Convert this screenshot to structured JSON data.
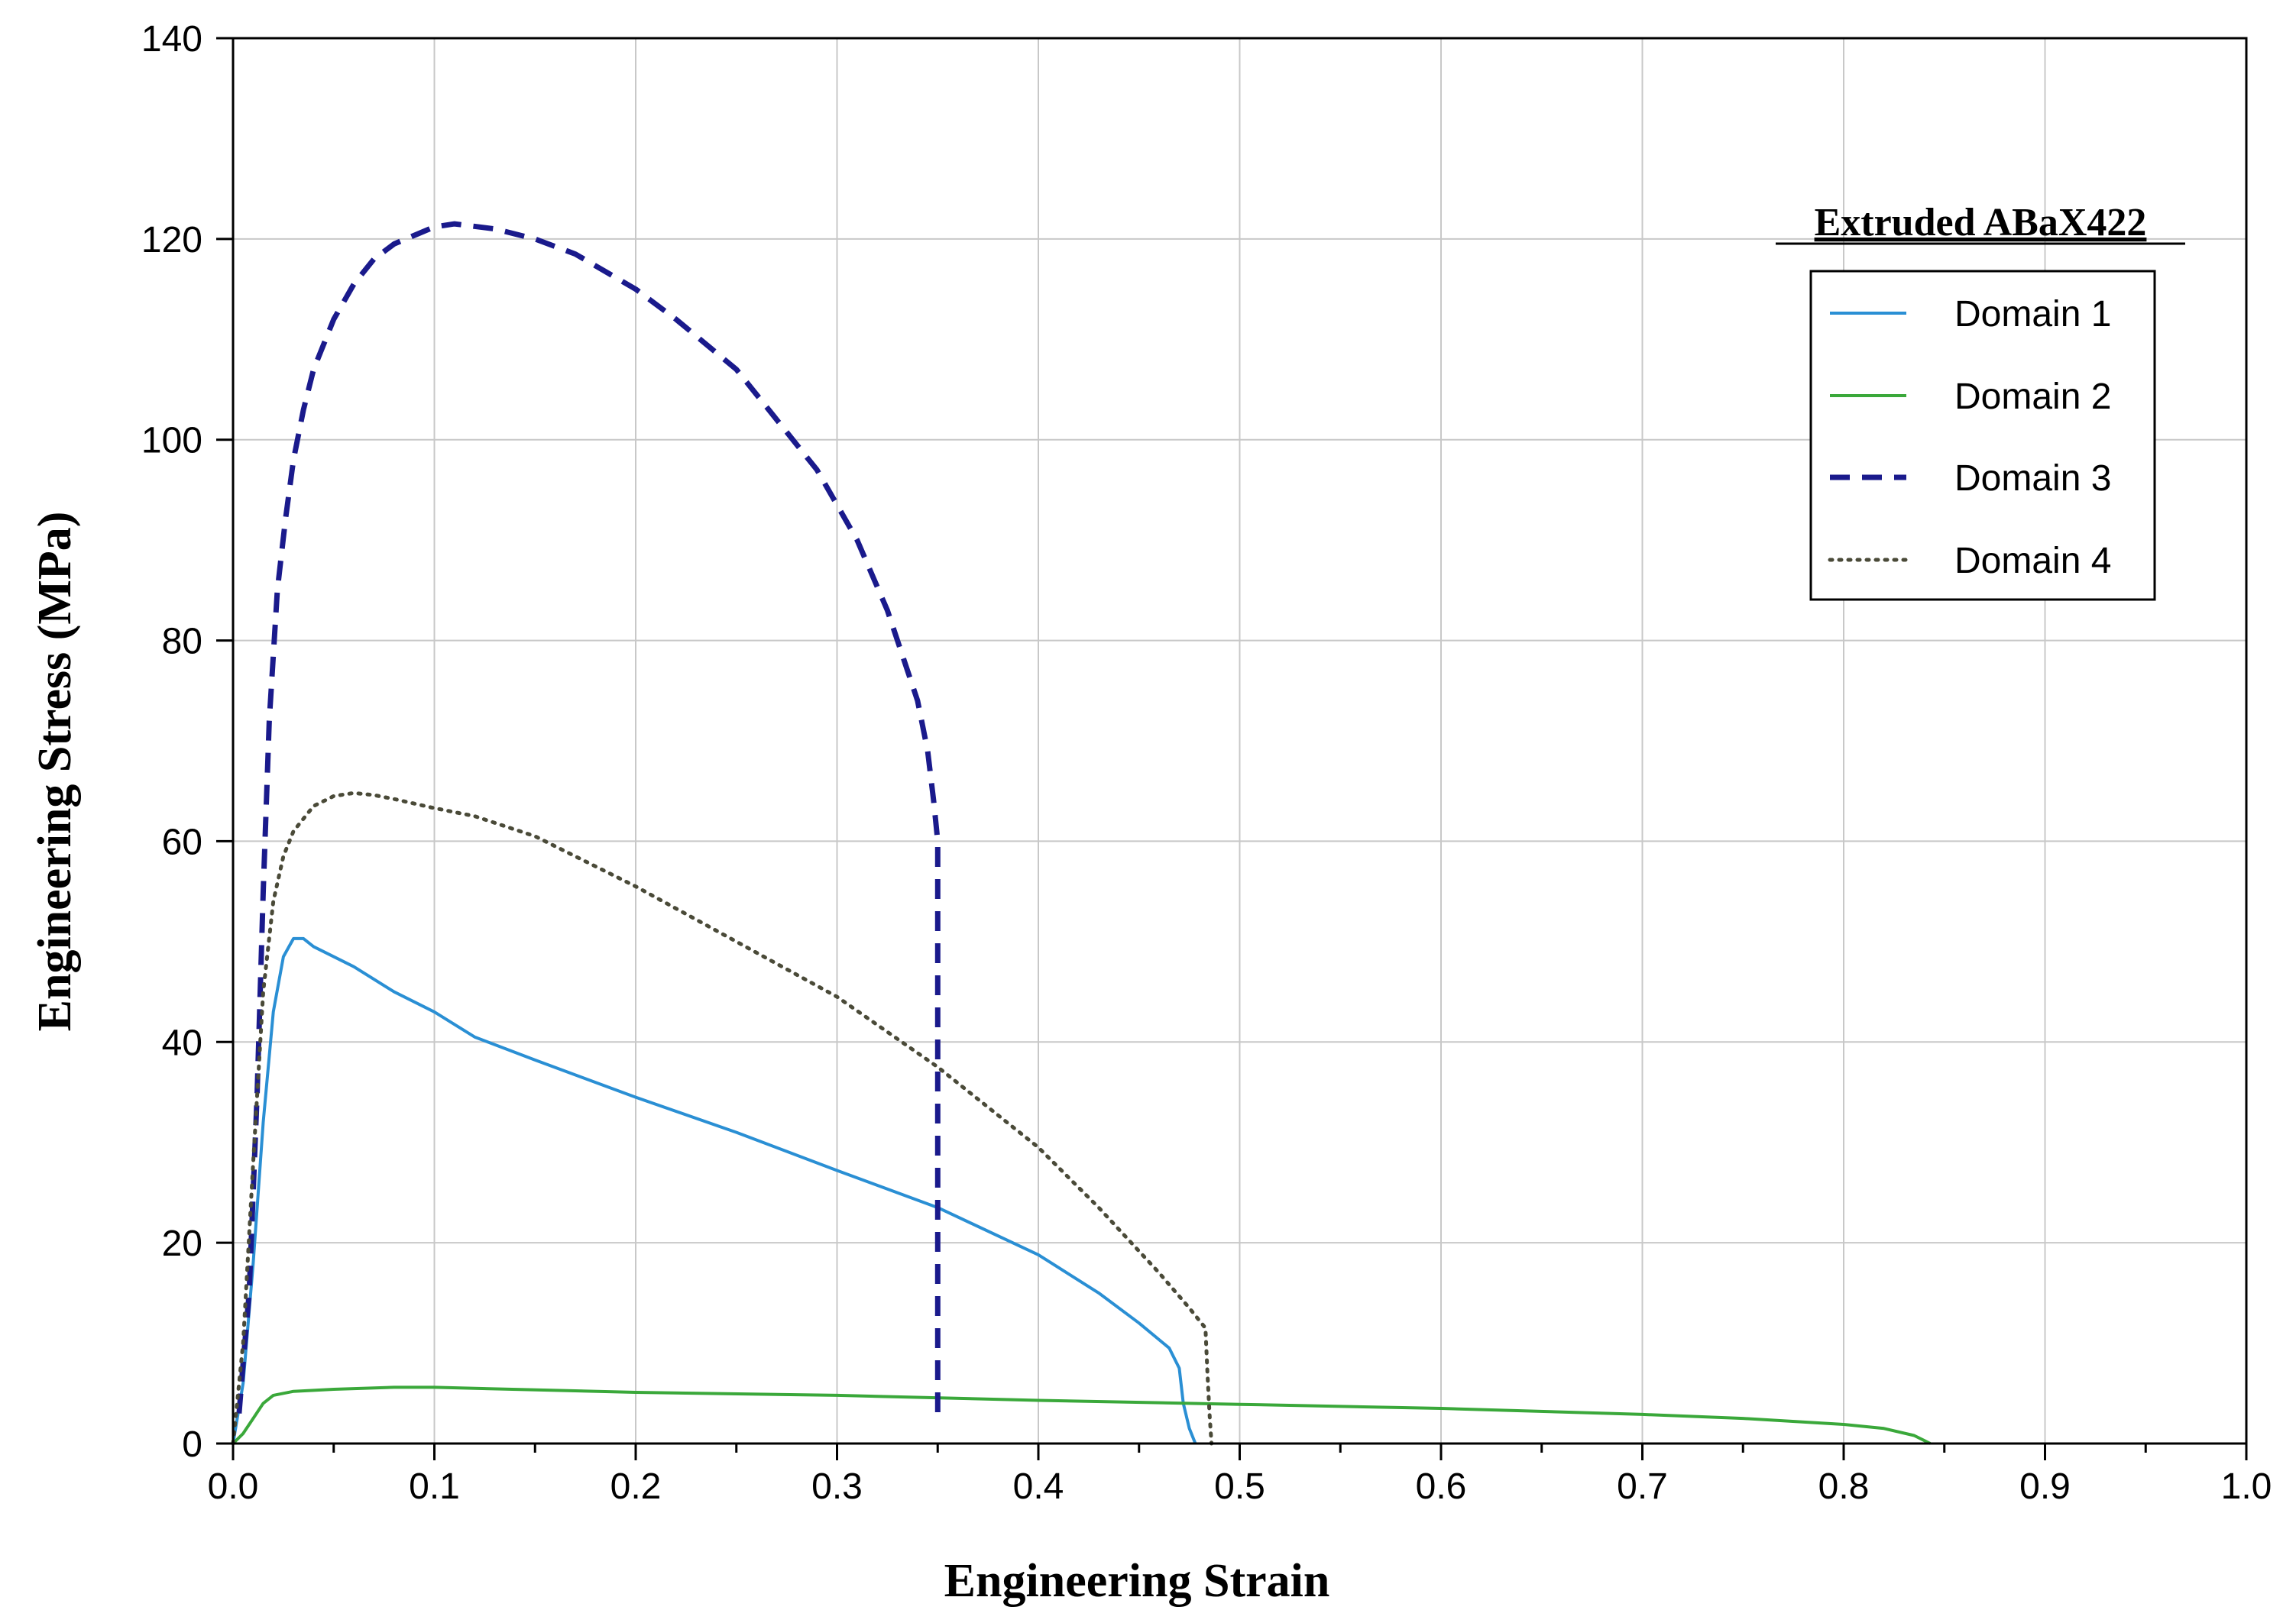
{
  "chart_data": {
    "type": "line",
    "title": "",
    "xlabel": "Engineering Strain",
    "ylabel": "Engineering Stress (MPa)",
    "xlim": [
      0.0,
      1.0
    ],
    "ylim": [
      0,
      140
    ],
    "x_ticks": [
      "0.0",
      "0.1",
      "0.2",
      "0.3",
      "0.4",
      "0.5",
      "0.6",
      "0.7",
      "0.8",
      "0.9",
      "1.0"
    ],
    "y_ticks": [
      "0",
      "20",
      "40",
      "60",
      "80",
      "100",
      "120",
      "140"
    ],
    "grid": true,
    "legend": {
      "title": "Extruded ABaX422",
      "position": "top-right"
    },
    "series": [
      {
        "name": "Domain 1",
        "color": "#2a8fd4",
        "style": "solid",
        "points": [
          [
            0,
            0
          ],
          [
            0.005,
            6
          ],
          [
            0.01,
            18
          ],
          [
            0.015,
            32
          ],
          [
            0.02,
            43
          ],
          [
            0.025,
            48.5
          ],
          [
            0.03,
            50.3
          ],
          [
            0.035,
            50.3
          ],
          [
            0.04,
            49.5
          ],
          [
            0.06,
            47.5
          ],
          [
            0.08,
            45
          ],
          [
            0.1,
            43
          ],
          [
            0.12,
            40.5
          ],
          [
            0.15,
            38.2
          ],
          [
            0.2,
            34.5
          ],
          [
            0.25,
            31
          ],
          [
            0.3,
            27.2
          ],
          [
            0.35,
            23.5
          ],
          [
            0.4,
            18.8
          ],
          [
            0.43,
            15
          ],
          [
            0.45,
            12
          ],
          [
            0.465,
            9.5
          ],
          [
            0.47,
            7.5
          ],
          [
            0.472,
            4
          ],
          [
            0.475,
            1.5
          ],
          [
            0.478,
            0
          ]
        ]
      },
      {
        "name": "Domain 2",
        "color": "#3aa83a",
        "style": "solid",
        "points": [
          [
            0,
            0
          ],
          [
            0.005,
            1
          ],
          [
            0.01,
            2.5
          ],
          [
            0.015,
            4
          ],
          [
            0.02,
            4.8
          ],
          [
            0.03,
            5.2
          ],
          [
            0.05,
            5.4
          ],
          [
            0.08,
            5.6
          ],
          [
            0.1,
            5.6
          ],
          [
            0.2,
            5.1
          ],
          [
            0.3,
            4.8
          ],
          [
            0.4,
            4.3
          ],
          [
            0.5,
            3.9
          ],
          [
            0.6,
            3.5
          ],
          [
            0.7,
            2.9
          ],
          [
            0.75,
            2.5
          ],
          [
            0.8,
            1.9
          ],
          [
            0.82,
            1.5
          ],
          [
            0.835,
            0.8
          ],
          [
            0.84,
            0.3
          ],
          [
            0.843,
            0
          ]
        ]
      },
      {
        "name": "Domain 3",
        "color": "#1a1a8c",
        "style": "dashed",
        "points": [
          [
            0.003,
            3
          ],
          [
            0.005,
            8
          ],
          [
            0.008,
            15
          ],
          [
            0.012,
            35
          ],
          [
            0.015,
            55
          ],
          [
            0.018,
            72
          ],
          [
            0.022,
            85
          ],
          [
            0.026,
            92
          ],
          [
            0.03,
            98
          ],
          [
            0.035,
            103
          ],
          [
            0.04,
            107
          ],
          [
            0.05,
            112
          ],
          [
            0.06,
            115.5
          ],
          [
            0.07,
            118
          ],
          [
            0.08,
            119.5
          ],
          [
            0.1,
            121.2
          ],
          [
            0.11,
            121.5
          ],
          [
            0.13,
            121
          ],
          [
            0.15,
            120
          ],
          [
            0.17,
            118.5
          ],
          [
            0.2,
            115
          ],
          [
            0.22,
            112
          ],
          [
            0.25,
            107
          ],
          [
            0.27,
            102
          ],
          [
            0.29,
            97
          ],
          [
            0.31,
            90
          ],
          [
            0.325,
            83
          ],
          [
            0.34,
            74
          ],
          [
            0.345,
            69
          ],
          [
            0.348,
            64
          ],
          [
            0.35,
            60
          ],
          [
            0.35,
            40
          ],
          [
            0.35,
            20
          ],
          [
            0.35,
            3
          ]
        ]
      },
      {
        "name": "Domain 4",
        "color": "#4a4a38",
        "style": "dotted",
        "points": [
          [
            0,
            0
          ],
          [
            0.005,
            10
          ],
          [
            0.01,
            28
          ],
          [
            0.015,
            45
          ],
          [
            0.02,
            54
          ],
          [
            0.025,
            58.5
          ],
          [
            0.03,
            61
          ],
          [
            0.04,
            63.5
          ],
          [
            0.05,
            64.5
          ],
          [
            0.06,
            64.8
          ],
          [
            0.07,
            64.6
          ],
          [
            0.08,
            64.2
          ],
          [
            0.1,
            63.3
          ],
          [
            0.12,
            62.5
          ],
          [
            0.15,
            60.5
          ],
          [
            0.2,
            55.5
          ],
          [
            0.25,
            50
          ],
          [
            0.3,
            44.5
          ],
          [
            0.35,
            37.5
          ],
          [
            0.4,
            29.5
          ],
          [
            0.43,
            23.5
          ],
          [
            0.46,
            17
          ],
          [
            0.475,
            13.5
          ],
          [
            0.483,
            11.5
          ],
          [
            0.484,
            7
          ],
          [
            0.485,
            3
          ],
          [
            0.486,
            0
          ]
        ]
      }
    ]
  }
}
